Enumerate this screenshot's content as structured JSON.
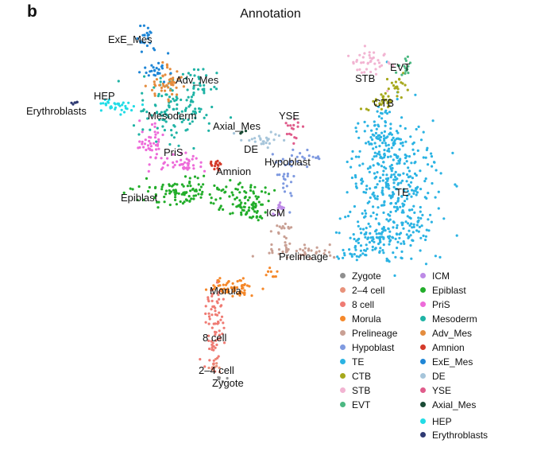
{
  "panel_letter": "b",
  "chart_data": {
    "type": "scatter",
    "title": "Annotation",
    "xlabel": "",
    "ylabel": "",
    "grid": false,
    "legend_placement": "bottom-right",
    "clusters": [
      {
        "name": "Zygote",
        "color": "#8f8f8f"
      },
      {
        "name": "2–4 cell",
        "color": "#e8927b"
      },
      {
        "name": "8 cell",
        "color": "#ef7b73"
      },
      {
        "name": "Morula",
        "color": "#f5882a"
      },
      {
        "name": "Prelineage",
        "color": "#c9a094"
      },
      {
        "name": "Hypoblast",
        "color": "#7f9ae0"
      },
      {
        "name": "TE",
        "color": "#2bb3e3"
      },
      {
        "name": "CTB",
        "color": "#a6a81c"
      },
      {
        "name": "STB",
        "color": "#f2b4d2"
      },
      {
        "name": "EVT",
        "color": "#4cb882"
      },
      {
        "name": "ICM",
        "color": "#bd8ae6"
      },
      {
        "name": "Epiblast",
        "color": "#22ad2a"
      },
      {
        "name": "PriS",
        "color": "#ed6bd9"
      },
      {
        "name": "Mesoderm",
        "color": "#1fb3a5"
      },
      {
        "name": "Adv_Mes",
        "color": "#e48c3e"
      },
      {
        "name": "Amnion",
        "color": "#d43a2a"
      },
      {
        "name": "ExE_Mes",
        "color": "#1f86d6"
      },
      {
        "name": "DE",
        "color": "#a6c5da"
      },
      {
        "name": "YSE",
        "color": "#e05c8b"
      },
      {
        "name": "Axial_Mes",
        "color": "#1a4a35"
      },
      {
        "name": "HEP",
        "color": "#22dce6"
      },
      {
        "name": "Erythroblasts",
        "color": "#2f3a73"
      }
    ],
    "annotations": [
      "ExE_Mes",
      "Adv_Mes",
      "HEP",
      "Erythroblasts",
      "Mesoderm",
      "PriS",
      "Amnion",
      "Epiblast",
      "Axial_Mes",
      "YSE",
      "DE",
      "Hypoblast",
      "ICM",
      "STB",
      "EVT",
      "CTB",
      "TE",
      "Prelineage",
      "Morula",
      "8 cell",
      "2–4 cell",
      "Zygote"
    ]
  }
}
